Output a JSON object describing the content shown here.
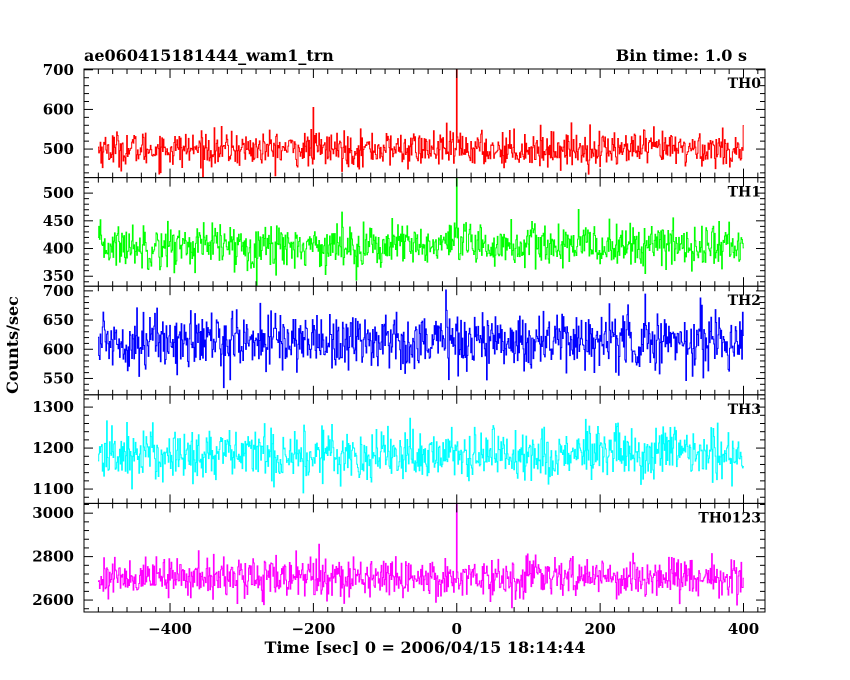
{
  "header": {
    "title": "ae060415181444_wam1_trn",
    "bin_time": "Bin time: 1.0 s"
  },
  "chart_data": {
    "type": "line",
    "title": "ae060415181444_wam1_trn",
    "subtitle": "Bin time: 1.0 s",
    "xlabel": "Time [sec] 0 = 2006/04/15 18:14:44",
    "ylabel": "Counts/sec",
    "xlim": [
      -520,
      430
    ],
    "x_start": -500,
    "x_end": 400,
    "x_step": 1,
    "x_ticks": [
      -400,
      -200,
      0,
      200,
      400
    ],
    "x_tick_labels": [
      "−400",
      "−200",
      "0",
      "200",
      "400"
    ],
    "grid": false,
    "panels": [
      {
        "name": "TH0",
        "color": "#ff0000",
        "ylim": [
          428,
          702
        ],
        "y_ticks": [
          500,
          600,
          700
        ],
        "y_tick_labels": [
          "500",
          "600",
          "700"
        ],
        "mean": 500,
        "std": 22,
        "spikes": [
          {
            "x": 0,
            "y": 702
          },
          {
            "x": -200,
            "y": 605
          }
        ]
      },
      {
        "name": "TH1",
        "color": "#00ff00",
        "ylim": [
          332,
          528
        ],
        "y_ticks": [
          350,
          400,
          450,
          500
        ],
        "y_tick_labels": [
          "350",
          "400",
          "450",
          "500"
        ],
        "mean": 405,
        "std": 20,
        "spikes": [
          {
            "x": 0,
            "y": 528
          }
        ]
      },
      {
        "name": "TH2",
        "color": "#0000ff",
        "ylim": [
          522,
          708
        ],
        "y_ticks": [
          550,
          600,
          650,
          700
        ],
        "y_tick_labels": [
          "550",
          "600",
          "650",
          "700"
        ],
        "mean": 615,
        "std": 25,
        "spikes": []
      },
      {
        "name": "TH3",
        "color": "#00ffff",
        "ylim": [
          1065,
          1330
        ],
        "y_ticks": [
          1100,
          1200,
          1300
        ],
        "y_tick_labels": [
          "1100",
          "1200",
          "1300"
        ],
        "mean": 1185,
        "std": 33,
        "spikes": []
      },
      {
        "name": "TH0123",
        "color": "#ff00ff",
        "ylim": [
          2545,
          3045
        ],
        "y_ticks": [
          2600,
          2800,
          3000
        ],
        "y_tick_labels": [
          "2600",
          "2800",
          "3000"
        ],
        "mean": 2705,
        "std": 45,
        "spikes": [
          {
            "x": 0,
            "y": 3045
          }
        ]
      }
    ]
  }
}
